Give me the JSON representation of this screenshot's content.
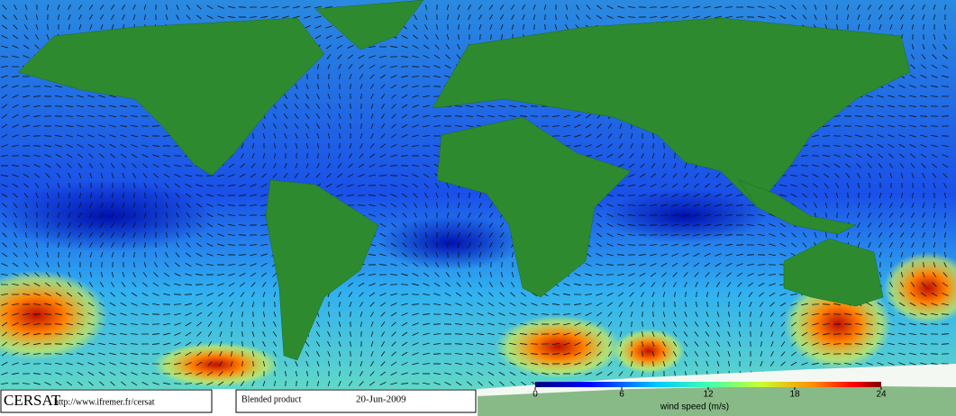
{
  "footer": {
    "logo": "CERSAT",
    "url": "http://www.ifremer.fr/cersat",
    "product": "Blended product",
    "date": "20-Jun-2009"
  },
  "colorbar": {
    "label": "wind speed (m/s)",
    "lim": [
      0,
      24
    ],
    "ticks": [
      0,
      6,
      12,
      18,
      24
    ]
  }
}
